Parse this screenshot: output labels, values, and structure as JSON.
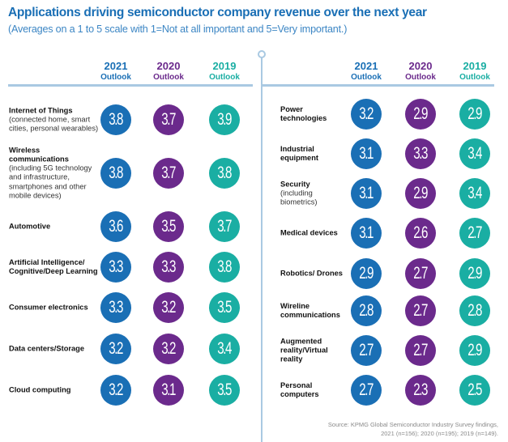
{
  "colors": {
    "2021": "#1a6fb5",
    "2020": "#6b2a8c",
    "2019": "#1aaea3",
    "rule": "#a9c9e2"
  },
  "header": {
    "title": "Applications driving semiconductor company revenue over the next year",
    "subtitle": "(Averages on a 1 to 5 scale with 1=Not at all important and 5=Very important.)"
  },
  "columns": [
    {
      "year": "2021",
      "label": "Outlook"
    },
    {
      "year": "2020",
      "label": "Outlook"
    },
    {
      "year": "2019",
      "label": "Outlook"
    }
  ],
  "source": {
    "line1": "Source: KPMG Global Semiconductor Industry Survey findings,",
    "line2": "2021 (n=156); 2020 (n=195); 2019 (n=149)."
  },
  "chart_data": {
    "type": "table",
    "title": "Applications driving semiconductor company revenue over the next year",
    "subtitle": "(Averages on a 1 to 5 scale with 1=Not at all important and 5=Very important.)",
    "scale": [
      1,
      5
    ],
    "series_names": [
      "2021 Outlook",
      "2020 Outlook",
      "2019 Outlook"
    ],
    "left": [
      {
        "name": "Internet of Things",
        "detail": "(connected home, smart cities, personal wearables)",
        "values": [
          "3.8",
          "3.7",
          "3.9"
        ]
      },
      {
        "name": "Wireless communications",
        "detail": "(including 5G technology and infrastructure, smartphones and other mobile devices)",
        "values": [
          "3.8",
          "3.7",
          "3.8"
        ]
      },
      {
        "name": "Automotive",
        "detail": "",
        "values": [
          "3.6",
          "3.5",
          "3.7"
        ]
      },
      {
        "name": "Artificial Intelligence/ Cognitive/Deep Learning",
        "detail": "",
        "values": [
          "3.3",
          "3.3",
          "3.8"
        ]
      },
      {
        "name": "Consumer electronics",
        "detail": "",
        "values": [
          "3.3",
          "3.2",
          "3.5"
        ]
      },
      {
        "name": "Data centers/Storage",
        "detail": "",
        "values": [
          "3.2",
          "3.2",
          "3.4"
        ]
      },
      {
        "name": "Cloud computing",
        "detail": "",
        "values": [
          "3.2",
          "3.1",
          "3.5"
        ]
      }
    ],
    "right": [
      {
        "name": "Power technologies",
        "detail": "",
        "values": [
          "3.2",
          "2.9",
          "2.9"
        ]
      },
      {
        "name": "Industrial equipment",
        "detail": "",
        "values": [
          "3.1",
          "3.3",
          "3.4"
        ]
      },
      {
        "name": "Security",
        "detail": "(including biometrics)",
        "values": [
          "3.1",
          "2.9",
          "3.4"
        ]
      },
      {
        "name": "Medical devices",
        "detail": "",
        "values": [
          "3.1",
          "2.6",
          "2.7"
        ]
      },
      {
        "name": "Robotics/ Drones",
        "detail": "",
        "values": [
          "2.9",
          "2.7",
          "2.9"
        ]
      },
      {
        "name": "Wireline communications",
        "detail": "",
        "values": [
          "2.8",
          "2.7",
          "2.8"
        ]
      },
      {
        "name": "Augmented reality/Virtual reality",
        "detail": "",
        "values": [
          "2.7",
          "2.7",
          "2.9"
        ]
      },
      {
        "name": "Personal computers",
        "detail": "",
        "values": [
          "2.7",
          "2.3",
          "2.5"
        ]
      }
    ]
  }
}
